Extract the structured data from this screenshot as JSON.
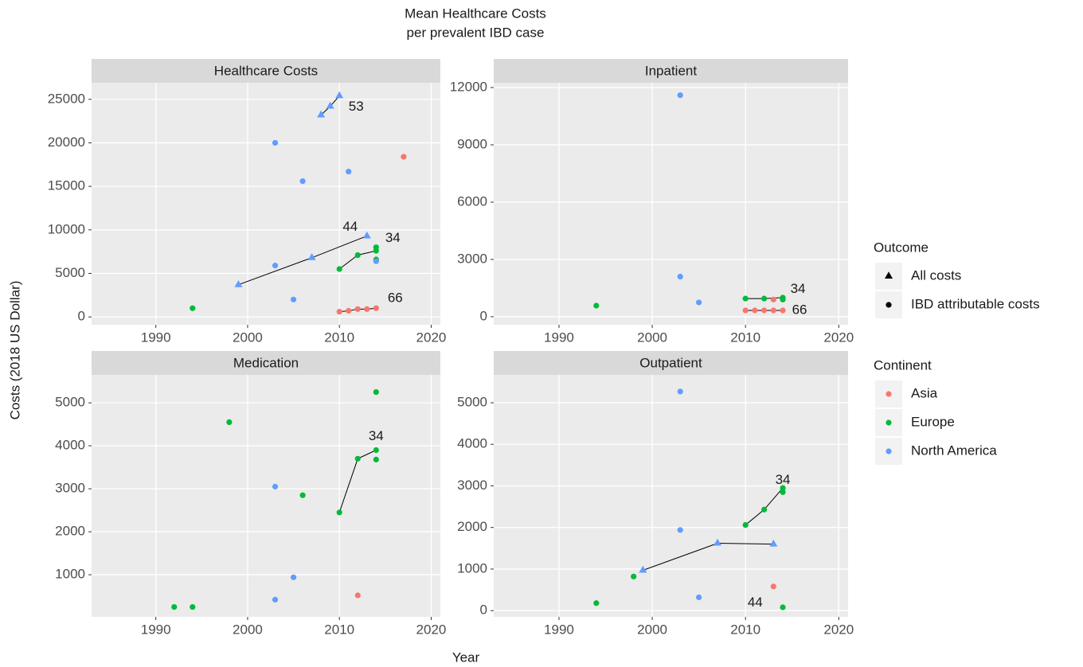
{
  "chart_data": {
    "type": "scatter",
    "title": [
      "Mean Healthcare Costs",
      "per prevalent IBD case"
    ],
    "xlabel": "Year",
    "ylabel": "Costs (2018 US Dollar)",
    "grid": true,
    "legends": [
      {
        "title": "Outcome",
        "items": [
          {
            "label": "All costs",
            "shape": "triangle"
          },
          {
            "label": "IBD attributable costs",
            "shape": "circle"
          }
        ]
      },
      {
        "title": "Continent",
        "items": [
          {
            "label": "Asia",
            "color": "#F8766D"
          },
          {
            "label": "Europe",
            "color": "#00BA38"
          },
          {
            "label": "North America",
            "color": "#619CFF"
          }
        ]
      }
    ],
    "line_color": "#000000",
    "panels": [
      {
        "strip": "Healthcare Costs",
        "xlim": [
          1983,
          2021
        ],
        "xticks": [
          1990,
          2000,
          2010,
          2020
        ],
        "ylim": [
          -900,
          26900
        ],
        "yticks": [
          0,
          5000,
          10000,
          15000,
          20000,
          25000
        ],
        "series": [
          {
            "continent": "Europe",
            "outcome": "IBD attributable costs",
            "x": [
              1994,
              2014
            ],
            "values": [
              1000,
              6600
            ]
          },
          {
            "continent": "North America",
            "outcome": "IBD attributable costs",
            "x": [
              2003,
              2003,
              2005,
              2006,
              2011,
              2014
            ],
            "values": [
              20000,
              5900,
              2000,
              15600,
              16700,
              6400
            ]
          },
          {
            "continent": "Asia",
            "outcome": "IBD attributable costs",
            "x": [
              2017
            ],
            "values": [
              18400
            ]
          },
          {
            "continent": "North America",
            "outcome": "All costs",
            "x": [
              2008,
              2009,
              2010
            ],
            "values": [
              23200,
              24200,
              25400
            ],
            "connected": true,
            "annotation": "53"
          },
          {
            "continent": "North America",
            "outcome": "All costs",
            "x": [
              1999,
              2007,
              2013
            ],
            "values": [
              3700,
              6800,
              9300
            ],
            "connected": true,
            "annotation": "44"
          },
          {
            "continent": "Europe",
            "outcome": "IBD attributable costs",
            "x": [
              2010,
              2012,
              2014,
              2014
            ],
            "values": [
              5500,
              7100,
              7600,
              8000
            ],
            "connected": true,
            "annotation": "34"
          },
          {
            "continent": "Asia",
            "outcome": "IBD attributable costs",
            "x": [
              2010,
              2011,
              2012,
              2013,
              2014
            ],
            "values": [
              600,
              700,
              900,
              900,
              1000
            ],
            "connected": true,
            "annotation": "66"
          }
        ]
      },
      {
        "strip": "Inpatient",
        "xlim": [
          1983,
          2021
        ],
        "xticks": [
          1990,
          2000,
          2010,
          2020
        ],
        "ylim": [
          -420,
          12250
        ],
        "yticks": [
          0,
          3000,
          6000,
          9000,
          12000
        ],
        "series": [
          {
            "continent": "Europe",
            "outcome": "IBD attributable costs",
            "x": [
              1994
            ],
            "values": [
              580
            ]
          },
          {
            "continent": "North America",
            "outcome": "IBD attributable costs",
            "x": [
              2003,
              2003,
              2005
            ],
            "values": [
              11600,
              2100,
              750
            ]
          },
          {
            "continent": "Asia",
            "outcome": "IBD attributable costs",
            "x": [
              2013
            ],
            "values": [
              900
            ]
          },
          {
            "continent": "Europe",
            "outcome": "IBD attributable costs",
            "x": [
              2010,
              2012,
              2014,
              2014
            ],
            "values": [
              950,
              950,
              1000,
              900
            ],
            "connected": true,
            "annotation": "34"
          },
          {
            "continent": "Asia",
            "outcome": "IBD attributable costs",
            "x": [
              2010,
              2011,
              2012,
              2013,
              2014
            ],
            "values": [
              330,
              330,
              330,
              330,
              330
            ],
            "connected": true,
            "annotation": "66"
          }
        ]
      },
      {
        "strip": "Medication",
        "xlim": [
          1983,
          2021
        ],
        "xticks": [
          1990,
          2000,
          2010,
          2020
        ],
        "ylim": [
          20,
          5650
        ],
        "yticks": [
          1000,
          2000,
          3000,
          4000,
          5000
        ],
        "series": [
          {
            "continent": "Europe",
            "outcome": "IBD attributable costs",
            "x": [
              1992,
              1994,
              1998,
              2006,
              2014,
              2014
            ],
            "values": [
              250,
              250,
              4550,
              2850,
              5250,
              3680
            ]
          },
          {
            "continent": "North America",
            "outcome": "IBD attributable costs",
            "x": [
              2003,
              2003,
              2005
            ],
            "values": [
              3050,
              420,
              940
            ]
          },
          {
            "continent": "Asia",
            "outcome": "IBD attributable costs",
            "x": [
              2012
            ],
            "values": [
              520
            ]
          },
          {
            "continent": "Europe",
            "outcome": "IBD attributable costs",
            "x": [
              2010,
              2012,
              2014
            ],
            "values": [
              2450,
              3700,
              3900
            ],
            "connected": true,
            "annotation": "34"
          }
        ]
      },
      {
        "strip": "Outpatient",
        "xlim": [
          1983,
          2021
        ],
        "xticks": [
          1990,
          2000,
          2010,
          2020
        ],
        "ylim": [
          -150,
          5670
        ],
        "yticks": [
          0,
          1000,
          2000,
          3000,
          4000,
          5000
        ],
        "series": [
          {
            "continent": "Europe",
            "outcome": "IBD attributable costs",
            "x": [
              1994,
              1998,
              2014
            ],
            "values": [
              180,
              820,
              80
            ]
          },
          {
            "continent": "North America",
            "outcome": "IBD attributable costs",
            "x": [
              2003,
              2003,
              2005
            ],
            "values": [
              5270,
              1940,
              320
            ]
          },
          {
            "continent": "Asia",
            "outcome": "IBD attributable costs",
            "x": [
              2013
            ],
            "values": [
              580
            ]
          },
          {
            "continent": "North America",
            "outcome": "All costs",
            "x": [
              1999,
              2007,
              2013
            ],
            "values": [
              970,
              1620,
              1600
            ],
            "connected": true,
            "annotation": "44"
          },
          {
            "continent": "Europe",
            "outcome": "IBD attributable costs",
            "x": [
              2010,
              2012,
              2014,
              2014
            ],
            "values": [
              2060,
              2430,
              2950,
              2850
            ],
            "connected": true,
            "annotation": "34"
          }
        ]
      }
    ]
  }
}
